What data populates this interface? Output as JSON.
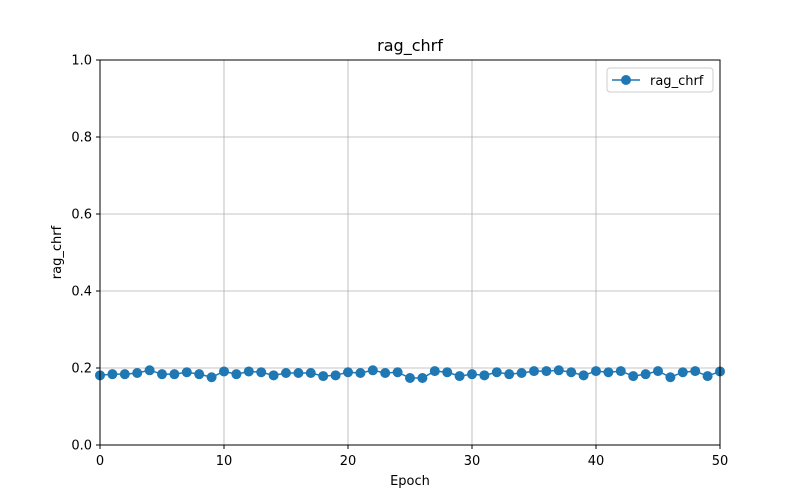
{
  "chart_data": {
    "type": "line",
    "title": "rag_chrf",
    "xlabel": "Epoch",
    "ylabel": "rag_chrf",
    "xlim": [
      0,
      50
    ],
    "ylim": [
      0,
      1
    ],
    "xticks": [
      0,
      10,
      20,
      30,
      40,
      50
    ],
    "yticks": [
      0.0,
      0.2,
      0.4,
      0.6,
      0.8,
      1.0
    ],
    "ytick_labels": [
      "0.0",
      "0.2",
      "0.4",
      "0.6",
      "0.8",
      "1.0"
    ],
    "grid": true,
    "legend_position": "top-right",
    "series": [
      {
        "name": "rag_chrf",
        "color": "#1f77b4",
        "marker": "circle",
        "x": [
          0,
          1,
          2,
          3,
          4,
          5,
          6,
          7,
          8,
          9,
          10,
          11,
          12,
          13,
          14,
          15,
          16,
          17,
          18,
          19,
          20,
          21,
          22,
          23,
          24,
          25,
          26,
          27,
          28,
          29,
          30,
          31,
          32,
          33,
          34,
          35,
          36,
          37,
          38,
          39,
          40,
          41,
          42,
          43,
          44,
          45,
          46,
          47,
          48,
          49,
          50
        ],
        "y": [
          0.181,
          0.184,
          0.184,
          0.187,
          0.194,
          0.184,
          0.184,
          0.189,
          0.184,
          0.176,
          0.191,
          0.184,
          0.191,
          0.189,
          0.181,
          0.187,
          0.187,
          0.187,
          0.179,
          0.181,
          0.189,
          0.187,
          0.194,
          0.187,
          0.189,
          0.174,
          0.174,
          0.192,
          0.189,
          0.179,
          0.184,
          0.181,
          0.189,
          0.184,
          0.187,
          0.192,
          0.192,
          0.194,
          0.189,
          0.181,
          0.192,
          0.189,
          0.192,
          0.179,
          0.184,
          0.192,
          0.176,
          0.189,
          0.192,
          0.179,
          0.191
        ]
      }
    ]
  }
}
